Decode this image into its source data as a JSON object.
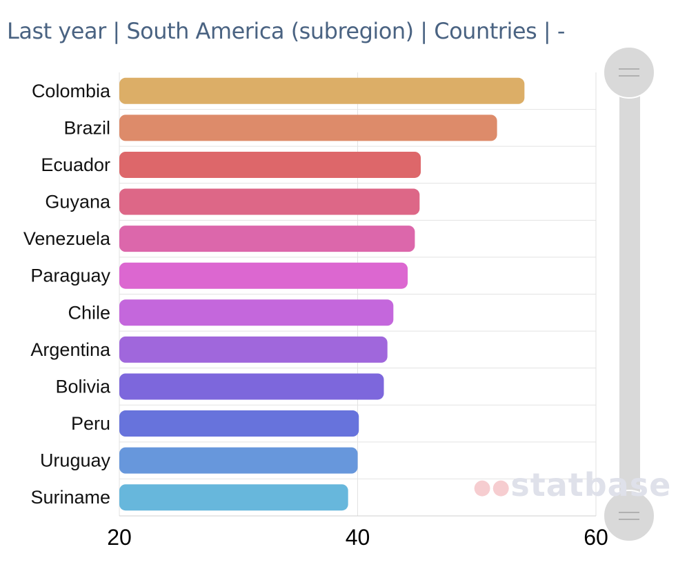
{
  "title": "Last year | South America (subregion) | Countries | -",
  "watermark": "statbase",
  "chart_data": {
    "type": "bar",
    "orientation": "horizontal",
    "title": "Last year | South America (subregion) | Countries | -",
    "categories": [
      "Colombia",
      "Brazil",
      "Ecuador",
      "Guyana",
      "Venezuela",
      "Paraguay",
      "Chile",
      "Argentina",
      "Bolivia",
      "Peru",
      "Uruguay",
      "Suriname"
    ],
    "values": [
      54.0,
      51.7,
      45.3,
      45.2,
      44.8,
      44.2,
      43.0,
      42.5,
      42.2,
      40.1,
      40.0,
      39.2
    ],
    "colors": [
      "#dcae67",
      "#dd8b6a",
      "#dd676a",
      "#dd6787",
      "#dc67ab",
      "#dc67d0",
      "#c467dc",
      "#a067dc",
      "#7d67dc",
      "#6773dc",
      "#6797dc",
      "#67b7dc"
    ],
    "xlim": [
      20,
      60
    ],
    "xticks": [
      "20",
      "40",
      "60"
    ],
    "xlabel": "",
    "ylabel": "",
    "grid": true,
    "legend": "none",
    "scrollbar": "vertical range slider (full range)"
  }
}
